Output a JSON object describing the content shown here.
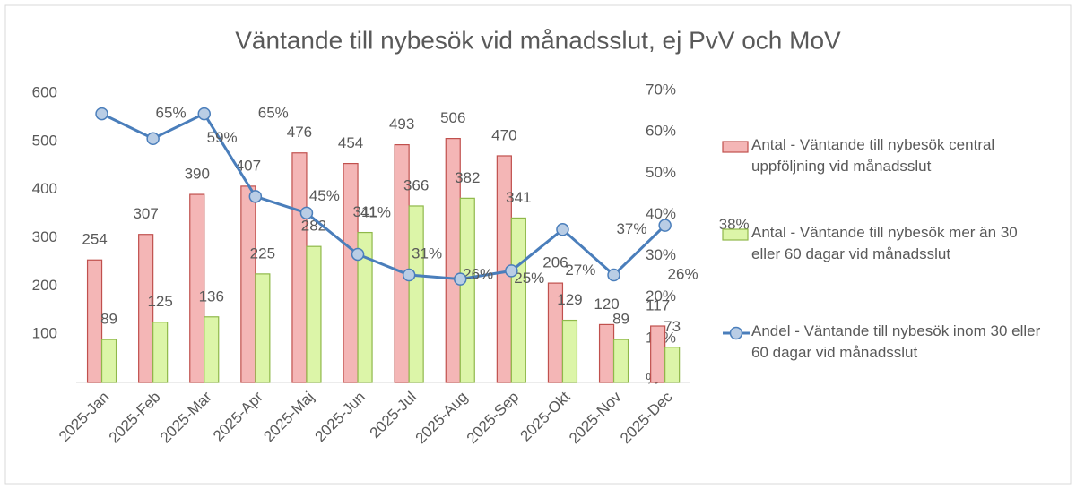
{
  "chart_data": {
    "type": "combo",
    "title": "Väntande till nybesök vid månadsslut, ej PvV och MoV",
    "categories": [
      "2025-Jan",
      "2025-Feb",
      "2025-Mar",
      "2025-Apr",
      "2025-Maj",
      "2025-Jun",
      "2025-Jul",
      "2025-Aug",
      "2025-Sep",
      "2025-Okt",
      "2025-Nov",
      "2025-Dec"
    ],
    "series": [
      {
        "name": "Antal - Väntande till nybesök central uppföljning vid månadsslut",
        "type": "bar",
        "color": "#f4b6b6",
        "edge": "#c0504d",
        "values": [
          254,
          307,
          390,
          407,
          476,
          454,
          493,
          506,
          470,
          206,
          120,
          117
        ]
      },
      {
        "name": "Antal - Väntande till nybesök mer än 30 eller 60 dagar vid månadsslut",
        "type": "bar",
        "color": "#dcf5a8",
        "edge": "#8fb84a",
        "values": [
          89,
          125,
          136,
          225,
          282,
          311,
          366,
          382,
          341,
          129,
          89,
          73
        ]
      },
      {
        "name": "Andel - Väntande till nybesök inom 30 eller 60 dagar vid månadsslut",
        "type": "line",
        "axis": "y2",
        "color": "#4a7ebb",
        "marker_fill": "#b9cde5",
        "values": [
          65,
          59,
          65,
          45,
          41,
          31,
          26,
          25,
          27,
          37,
          26,
          38
        ],
        "value_labels": [
          "65%",
          "59%",
          "65%",
          "45%",
          "41%",
          "31%",
          "26%",
          "25%",
          "27%",
          "37%",
          "26%",
          "38%"
        ]
      }
    ],
    "ylim": [
      0,
      600
    ],
    "yticks": [
      100,
      200,
      300,
      400,
      500,
      600
    ],
    "y2lim": [
      0,
      70
    ],
    "y2ticks": [
      {
        "value": 0,
        "label": "%"
      },
      {
        "value": 10,
        "label": "10%"
      },
      {
        "value": 20,
        "label": "20%"
      },
      {
        "value": 30,
        "label": "30%"
      },
      {
        "value": 40,
        "label": "40%"
      },
      {
        "value": 50,
        "label": "50%"
      },
      {
        "value": 60,
        "label": "60%"
      },
      {
        "value": 70,
        "label": "70%"
      }
    ],
    "legend": "right",
    "grid": false
  }
}
